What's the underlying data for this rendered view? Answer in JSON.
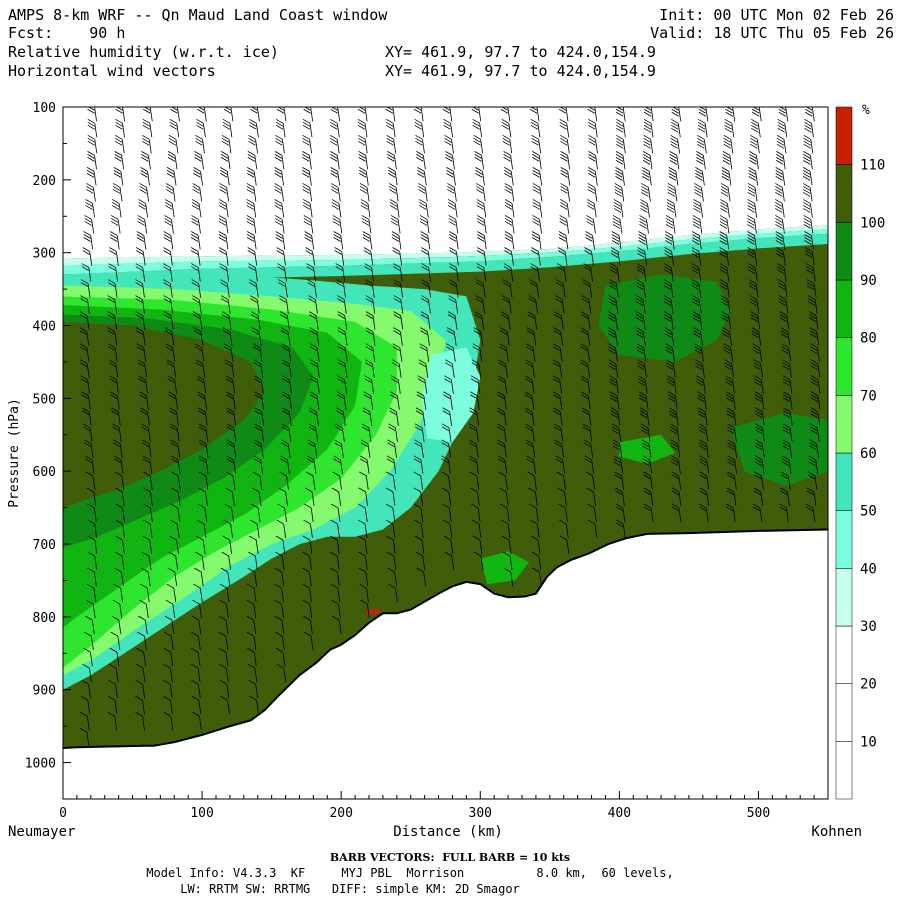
{
  "header": {
    "title": "AMPS 8-km WRF -- Qn Maud Land Coast window",
    "fcst": "Fcst:    90 h",
    "field1": "Relative humidity (w.r.t. ice)",
    "field2": "Horizontal wind vectors",
    "xy1": "XY= 461.9, 97.7 to 424.0,154.9",
    "xy2": "XY= 461.9, 97.7 to 424.0,154.9",
    "init": "Init: 00 UTC Mon 02 Feb 26",
    "valid": "Valid: 18 UTC Thu 05 Feb 26"
  },
  "footer": {
    "barb_note": "BARB VECTORS:  FULL BARB = 10 kts",
    "model_info": "Model Info: V4.3.3  KF     MYJ PBL  Morrison          8.0 km,  60 levels,",
    "physics": "LW: RRTM SW: RRTMG   DIFF: simple KM: 2D Smagor"
  },
  "chart_data": {
    "type": "heatmap",
    "xlabel": "Distance (km)",
    "ylabel": "Pressure (hPa)",
    "x_left_label": "Neumayer",
    "x_right_label": "Kohnen",
    "xlim": [
      0,
      550
    ],
    "ylim": [
      1050,
      100
    ],
    "x_ticks": [
      0,
      100,
      200,
      300,
      400,
      500
    ],
    "y_ticks": [
      100,
      200,
      300,
      400,
      500,
      600,
      700,
      800,
      900,
      1000
    ],
    "colorbar": {
      "unit": "%",
      "levels": [
        10,
        20,
        30,
        40,
        50,
        60,
        70,
        80,
        90,
        100,
        110
      ],
      "colors": [
        "#ffffff",
        "#ffffff",
        "#ffffff",
        "#c7ffef",
        "#7dffdf",
        "#43e6bb",
        "#86fa6e",
        "#2ee62e",
        "#10b512",
        "#108a16",
        "#405e0a",
        "#c72000"
      ]
    },
    "terrain": [
      [
        0,
        980
      ],
      [
        10,
        979
      ],
      [
        30,
        978
      ],
      [
        60,
        977
      ],
      [
        65,
        977
      ],
      [
        80,
        972
      ],
      [
        100,
        962
      ],
      [
        120,
        950
      ],
      [
        135,
        942
      ],
      [
        145,
        928
      ],
      [
        155,
        908
      ],
      [
        170,
        880
      ],
      [
        182,
        863
      ],
      [
        192,
        845
      ],
      [
        200,
        838
      ],
      [
        210,
        825
      ],
      [
        220,
        808
      ],
      [
        230,
        795
      ],
      [
        240,
        795
      ],
      [
        250,
        790
      ],
      [
        260,
        779
      ],
      [
        270,
        768
      ],
      [
        280,
        758
      ],
      [
        290,
        752
      ],
      [
        300,
        755
      ],
      [
        310,
        768
      ],
      [
        320,
        773
      ],
      [
        332,
        772
      ],
      [
        340,
        768
      ],
      [
        348,
        745
      ],
      [
        355,
        732
      ],
      [
        365,
        722
      ],
      [
        378,
        713
      ],
      [
        392,
        700
      ],
      [
        405,
        692
      ],
      [
        420,
        686
      ],
      [
        450,
        685
      ],
      [
        500,
        682
      ],
      [
        550,
        680
      ]
    ],
    "rh_regions": [
      {
        "level": 30,
        "color": "#c7ffef",
        "points": [
          [
            0,
            308
          ],
          [
            100,
            305
          ],
          [
            200,
            303
          ],
          [
            280,
            300
          ],
          [
            350,
            295
          ],
          [
            400,
            286
          ],
          [
            450,
            276
          ],
          [
            500,
            268
          ],
          [
            550,
            262
          ]
        ]
      },
      {
        "level": 40,
        "color": "#7dffdf",
        "points": [
          [
            0,
            318
          ],
          [
            100,
            312
          ],
          [
            200,
            310
          ],
          [
            280,
            306
          ],
          [
            350,
            300
          ],
          [
            400,
            292
          ],
          [
            450,
            282
          ],
          [
            500,
            274
          ],
          [
            550,
            268
          ]
        ]
      },
      {
        "level": 50,
        "color": "#43e6bb",
        "points": [
          [
            0,
            330
          ],
          [
            100,
            322
          ],
          [
            200,
            318
          ],
          [
            300,
            312
          ],
          [
            350,
            306
          ],
          [
            400,
            298
          ],
          [
            450,
            288
          ],
          [
            500,
            280
          ],
          [
            550,
            274
          ]
        ]
      }
    ],
    "wind_columns_km": [
      20,
      40,
      60,
      80,
      100,
      120,
      140,
      160,
      180,
      200,
      220,
      240,
      260,
      280,
      300,
      320,
      340,
      360,
      380,
      400,
      420,
      440,
      460,
      480,
      500,
      520,
      540
    ]
  }
}
